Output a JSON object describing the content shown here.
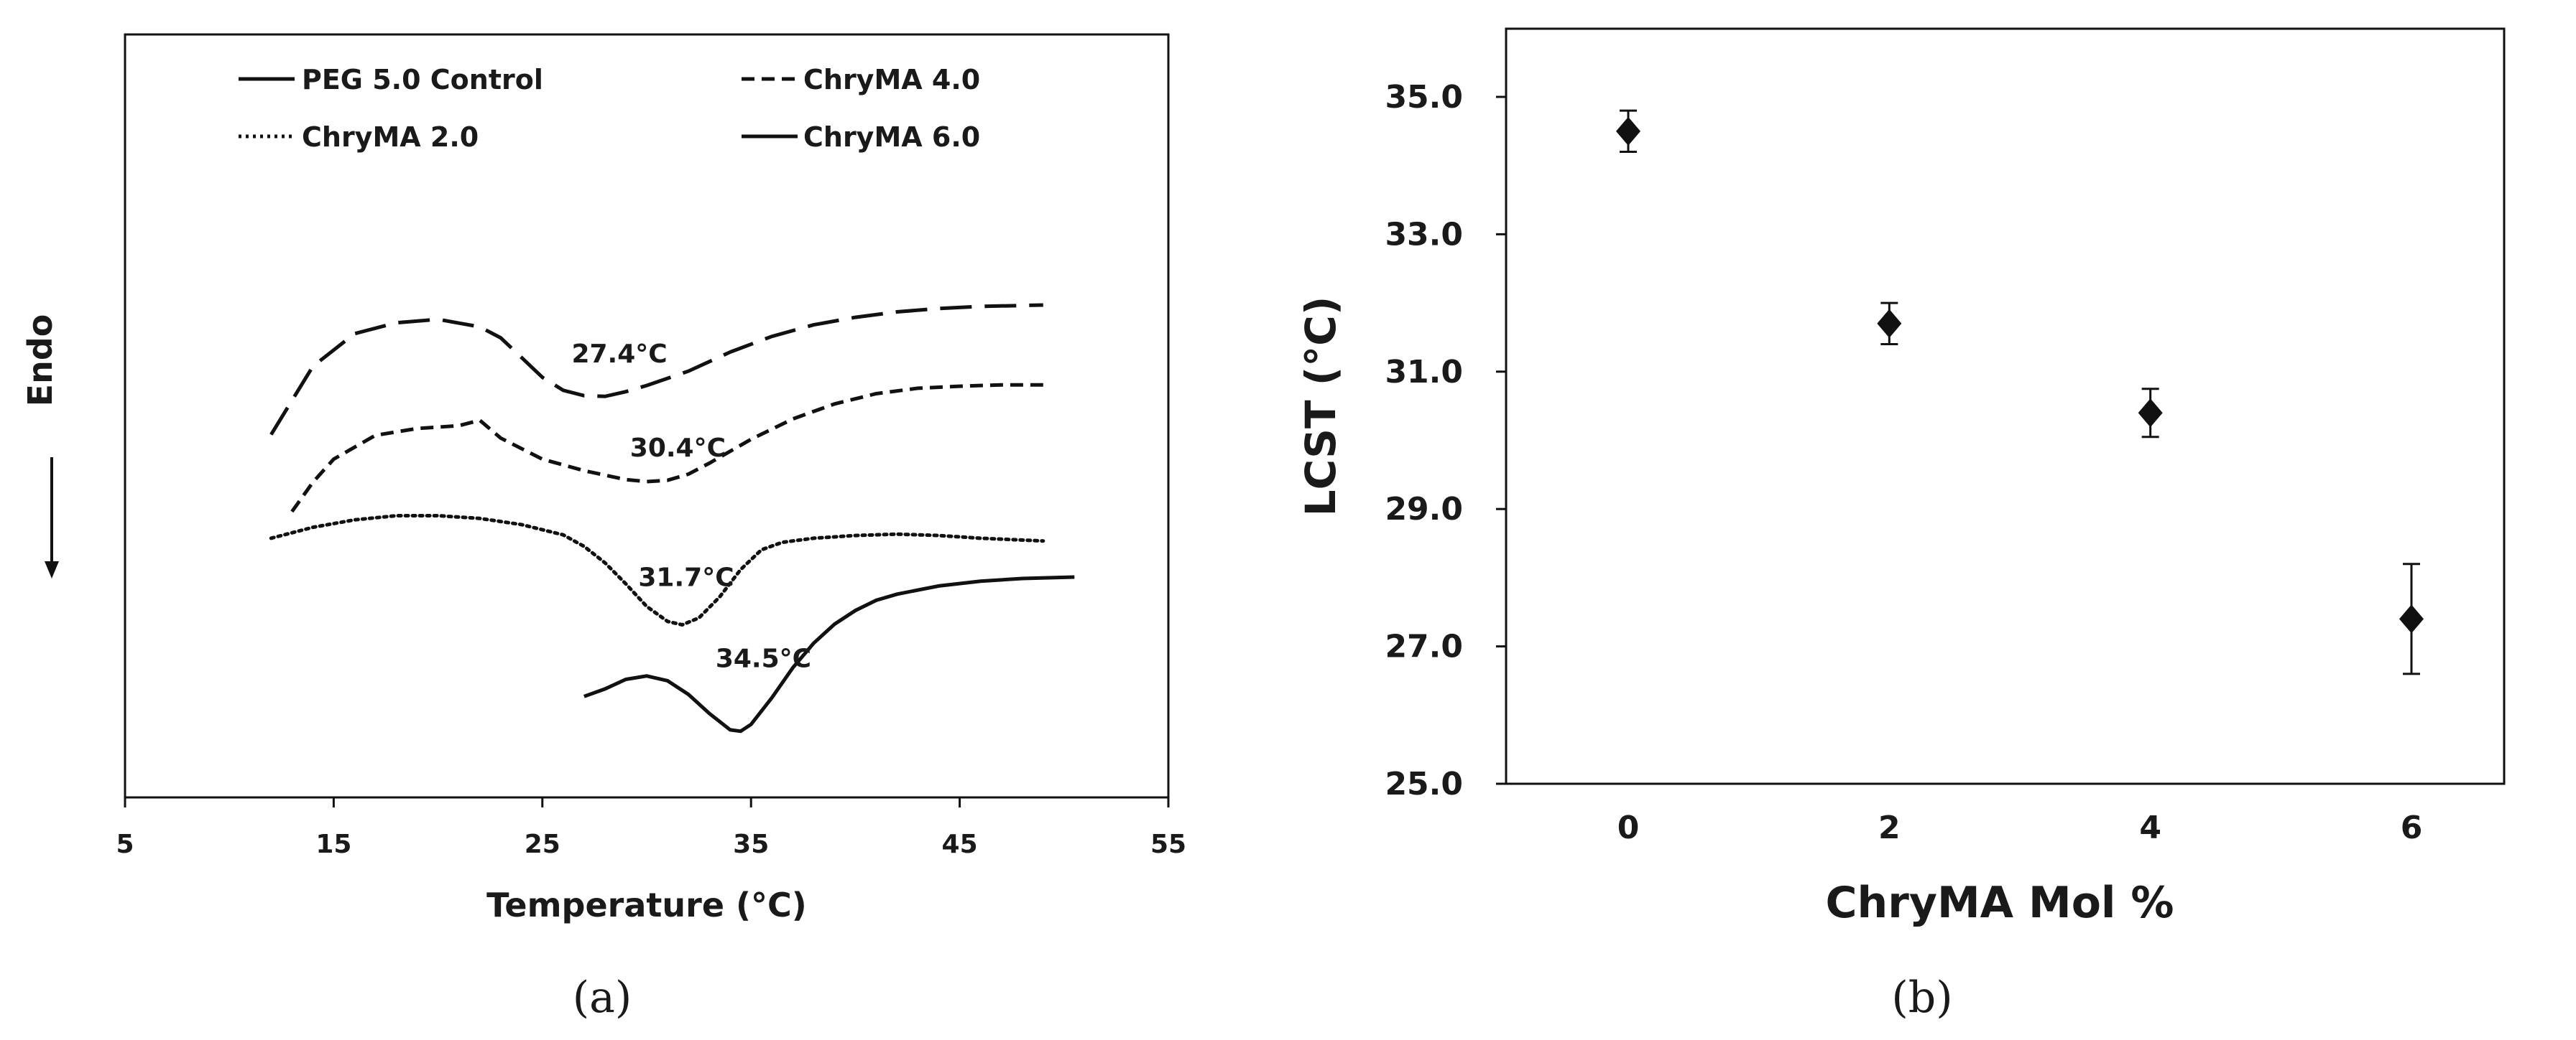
{
  "chart_data": [
    {
      "type": "line",
      "panel_label": "(a)",
      "xlabel": "Temperature (°C)",
      "ylabel": "Endo",
      "xlim": [
        5,
        55
      ],
      "x_ticks": [
        "5",
        "15",
        "25",
        "35",
        "45",
        "55"
      ],
      "y_ticks_shown": false,
      "endo_arrow": "down",
      "grid": false,
      "legend_position": "top",
      "legend": [
        {
          "name": "PEG 5.0 Control",
          "style": "solid"
        },
        {
          "name": "ChryMA 4.0",
          "style": "dashed"
        },
        {
          "name": "ChryMA 2.0",
          "style": "dotted"
        },
        {
          "name": "ChryMA 6.0",
          "style": "long-dash"
        }
      ],
      "ylim": [
        0,
        100
      ],
      "series": [
        {
          "style": "long-dash",
          "annotation": "27.4°C",
          "annotation_at": [
            26.4,
            61.6
          ],
          "points": [
            [
              12,
              51
            ],
            [
              14,
              61
            ],
            [
              16,
              65.8
            ],
            [
              18,
              67.4
            ],
            [
              20,
              67.9
            ],
            [
              22,
              66.8
            ],
            [
              23,
              65.2
            ],
            [
              24,
              62.3
            ],
            [
              25,
              59.4
            ],
            [
              26,
              57.5
            ],
            [
              27,
              56.7
            ],
            [
              28,
              56.6
            ],
            [
              29,
              57.3
            ],
            [
              30,
              58.2
            ],
            [
              32,
              60.3
            ],
            [
              34,
              63.1
            ],
            [
              36,
              65.4
            ],
            [
              38,
              67.1
            ],
            [
              40,
              68.2
            ],
            [
              42,
              69
            ],
            [
              44,
              69.5
            ],
            [
              46,
              69.8
            ],
            [
              49,
              70
            ]
          ]
        },
        {
          "style": "dashed",
          "annotation": "30.4°C",
          "annotation_at": [
            29.2,
            47.8
          ],
          "points": [
            [
              13,
              39.7
            ],
            [
              14,
              44
            ],
            [
              15,
              47.4
            ],
            [
              17,
              50.9
            ],
            [
              19,
              51.9
            ],
            [
              21,
              52.3
            ],
            [
              22,
              53.1
            ],
            [
              23,
              50.5
            ],
            [
              25,
              47.4
            ],
            [
              27,
              45.7
            ],
            [
              29,
              44.4
            ],
            [
              30,
              44.1
            ],
            [
              31,
              44.3
            ],
            [
              32,
              45.2
            ],
            [
              33,
              46.8
            ],
            [
              35,
              50.3
            ],
            [
              37,
              53.3
            ],
            [
              39,
              55.5
            ],
            [
              41,
              57
            ],
            [
              43,
              57.8
            ],
            [
              45,
              58.1
            ],
            [
              47,
              58.3
            ],
            [
              49,
              58.3
            ]
          ]
        },
        {
          "style": "dotted",
          "annotation": "31.7°C",
          "annotation_at": [
            29.6,
            28.8
          ],
          "points": [
            [
              12,
              35.8
            ],
            [
              14,
              37.4
            ],
            [
              16,
              38.5
            ],
            [
              18,
              39.1
            ],
            [
              20,
              39.1
            ],
            [
              22,
              38.7
            ],
            [
              24,
              37.8
            ],
            [
              26,
              36.3
            ],
            [
              27,
              34.6
            ],
            [
              28,
              32.2
            ],
            [
              29,
              29.1
            ],
            [
              30,
              25.8
            ],
            [
              31,
              23.6
            ],
            [
              31.7,
              23.1
            ],
            [
              32.5,
              24.1
            ],
            [
              33.5,
              27.2
            ],
            [
              34.5,
              31.2
            ],
            [
              35.5,
              34.1
            ],
            [
              36.5,
              35.2
            ],
            [
              38,
              35.8
            ],
            [
              40,
              36.2
            ],
            [
              42,
              36.4
            ],
            [
              44,
              36.2
            ],
            [
              46,
              35.8
            ],
            [
              49,
              35.4
            ]
          ]
        },
        {
          "style": "solid",
          "annotation": "34.5°C",
          "annotation_at": [
            33.3,
            16.9
          ],
          "points": [
            [
              27,
              12.6
            ],
            [
              28,
              13.7
            ],
            [
              29,
              15.1
            ],
            [
              30,
              15.6
            ],
            [
              31,
              14.9
            ],
            [
              32,
              12.9
            ],
            [
              33,
              10.1
            ],
            [
              34,
              7.7
            ],
            [
              34.5,
              7.5
            ],
            [
              35,
              8.5
            ],
            [
              36,
              12.4
            ],
            [
              37,
              16.8
            ],
            [
              38,
              20.4
            ],
            [
              39,
              23.2
            ],
            [
              40,
              25.2
            ],
            [
              41,
              26.7
            ],
            [
              42,
              27.6
            ],
            [
              44,
              28.8
            ],
            [
              46,
              29.5
            ],
            [
              48,
              29.9
            ],
            [
              50.5,
              30.1
            ]
          ]
        }
      ]
    },
    {
      "type": "scatter",
      "panel_label": "(b)",
      "xlabel": "ChryMA Mol %",
      "ylabel": "LCST (°C)",
      "xlim": [
        -1,
        7.2
      ],
      "ylim": [
        25,
        36
      ],
      "x_ticks": [
        "0",
        "2",
        "4",
        "6"
      ],
      "y_ticks": [
        "25.0",
        "27.0",
        "29.0",
        "31.0",
        "33.0",
        "35.0"
      ],
      "grid": false,
      "marker": "diamond",
      "points": [
        {
          "x": 0,
          "y": 34.5,
          "err": 0.3
        },
        {
          "x": 2,
          "y": 31.7,
          "err": 0.3
        },
        {
          "x": 4,
          "y": 30.4,
          "err": 0.35
        },
        {
          "x": 6,
          "y": 27.4,
          "err": 0.8
        }
      ]
    }
  ],
  "colors": {
    "ink": "#111111",
    "background": "#ffffff"
  }
}
